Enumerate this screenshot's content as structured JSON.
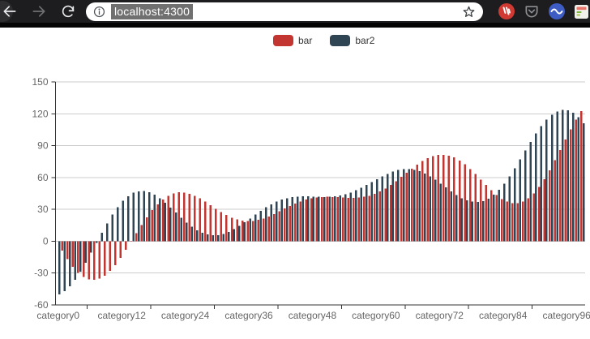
{
  "browser": {
    "url": "localhost:4300",
    "icons": {
      "back": "back-arrow-icon",
      "forward": "forward-arrow-icon",
      "reload": "reload-icon",
      "site_info": "info-icon",
      "bookmark": "star-icon",
      "extensions": [
        "red-circle-extension-icon",
        "pocket-extension-icon",
        "blue-circle-extension-icon",
        "feed-extension-icon"
      ]
    },
    "toolbar_bg": "#1d1d1f",
    "url_selection_bg": "#707070"
  },
  "chart_data": {
    "type": "bar",
    "title": "",
    "xlabel": "",
    "ylabel": "",
    "grid": true,
    "legend_position": "top-center",
    "ylim": [
      -60,
      150
    ],
    "y_ticks": [
      -60,
      -30,
      0,
      30,
      60,
      90,
      120,
      150
    ],
    "n_categories": 100,
    "category_prefix": "category",
    "x_ticks": [
      {
        "index": 0,
        "label": "category0"
      },
      {
        "index": 12,
        "label": "category12"
      },
      {
        "index": 24,
        "label": "category24"
      },
      {
        "index": 36,
        "label": "category36"
      },
      {
        "index": 48,
        "label": "category48"
      },
      {
        "index": 60,
        "label": "category60"
      },
      {
        "index": 72,
        "label": "category72"
      },
      {
        "index": 84,
        "label": "category84"
      },
      {
        "index": 96,
        "label": "category96"
      }
    ],
    "series": [
      {
        "name": "bar",
        "color": "#c23531",
        "values": [
          0,
          -8.9,
          -17.0,
          -24.0,
          -29.7,
          -33.7,
          -36.0,
          -36.5,
          -35.3,
          -32.4,
          -28.0,
          -22.4,
          -15.7,
          -8.2,
          -0.4,
          7.6,
          15.3,
          22.6,
          29.2,
          34.8,
          39.4,
          42.8,
          45.0,
          46.0,
          45.9,
          44.8,
          42.9,
          40.3,
          37.2,
          33.9,
          30.6,
          27.4,
          24.6,
          22.2,
          20.4,
          19.3,
          18.9,
          19.2,
          20.1,
          21.5,
          23.4,
          25.7,
          28.2,
          30.7,
          33.2,
          35.4,
          37.4,
          39.1,
          40.3,
          41.2,
          41.7,
          41.8,
          41.7,
          41.4,
          41.1,
          40.8,
          40.8,
          41.1,
          41.8,
          42.9,
          44.6,
          46.9,
          49.7,
          52.9,
          56.6,
          60.5,
          64.5,
          68.4,
          72.1,
          75.4,
          78.1,
          80.1,
          81.2,
          81.4,
          80.6,
          78.8,
          75.9,
          72.4,
          68.0,
          63.2,
          58.0,
          52.9,
          47.9,
          43.5,
          39.8,
          37.2,
          35.8,
          35.8,
          37.3,
          40.3,
          45.0,
          51.0,
          58.4,
          66.9,
          76.2,
          85.9,
          95.8,
          105.4,
          114.4,
          122.4
        ]
      },
      {
        "name": "bar2",
        "color": "#2f4554",
        "values": [
          -50.0,
          -47.2,
          -42.5,
          -36.3,
          -28.7,
          -20.1,
          -10.9,
          -1.5,
          7.9,
          16.8,
          25.0,
          32.1,
          38.0,
          42.5,
          45.6,
          47.1,
          47.3,
          46.1,
          43.7,
          40.4,
          36.3,
          31.7,
          26.9,
          22.2,
          17.7,
          13.7,
          10.4,
          7.9,
          6.3,
          5.6,
          5.8,
          6.9,
          8.8,
          11.3,
          14.4,
          17.9,
          21.5,
          25.1,
          28.7,
          31.9,
          34.8,
          37.2,
          39.2,
          40.6,
          41.5,
          42.1,
          42.2,
          42.2,
          42.0,
          41.8,
          41.7,
          41.8,
          42.2,
          43.0,
          44.2,
          45.9,
          47.9,
          50.3,
          52.9,
          55.7,
          58.4,
          61.1,
          63.5,
          65.5,
          67.0,
          67.8,
          67.9,
          67.3,
          65.9,
          63.8,
          61.1,
          57.8,
          54.3,
          50.6,
          47.0,
          43.5,
          40.6,
          38.4,
          37.2,
          37.0,
          37.9,
          40.2,
          43.7,
          48.5,
          54.3,
          61.2,
          68.8,
          77.0,
          85.5,
          93.5,
          101.4,
          108.5,
          114.5,
          119.2,
          122.3,
          123.7,
          123.2,
          120.9,
          116.8,
          111.0
        ]
      }
    ],
    "axis_colors": {
      "axis_line": "#333333",
      "grid_line": "#cccccc",
      "label": "#666666"
    }
  }
}
